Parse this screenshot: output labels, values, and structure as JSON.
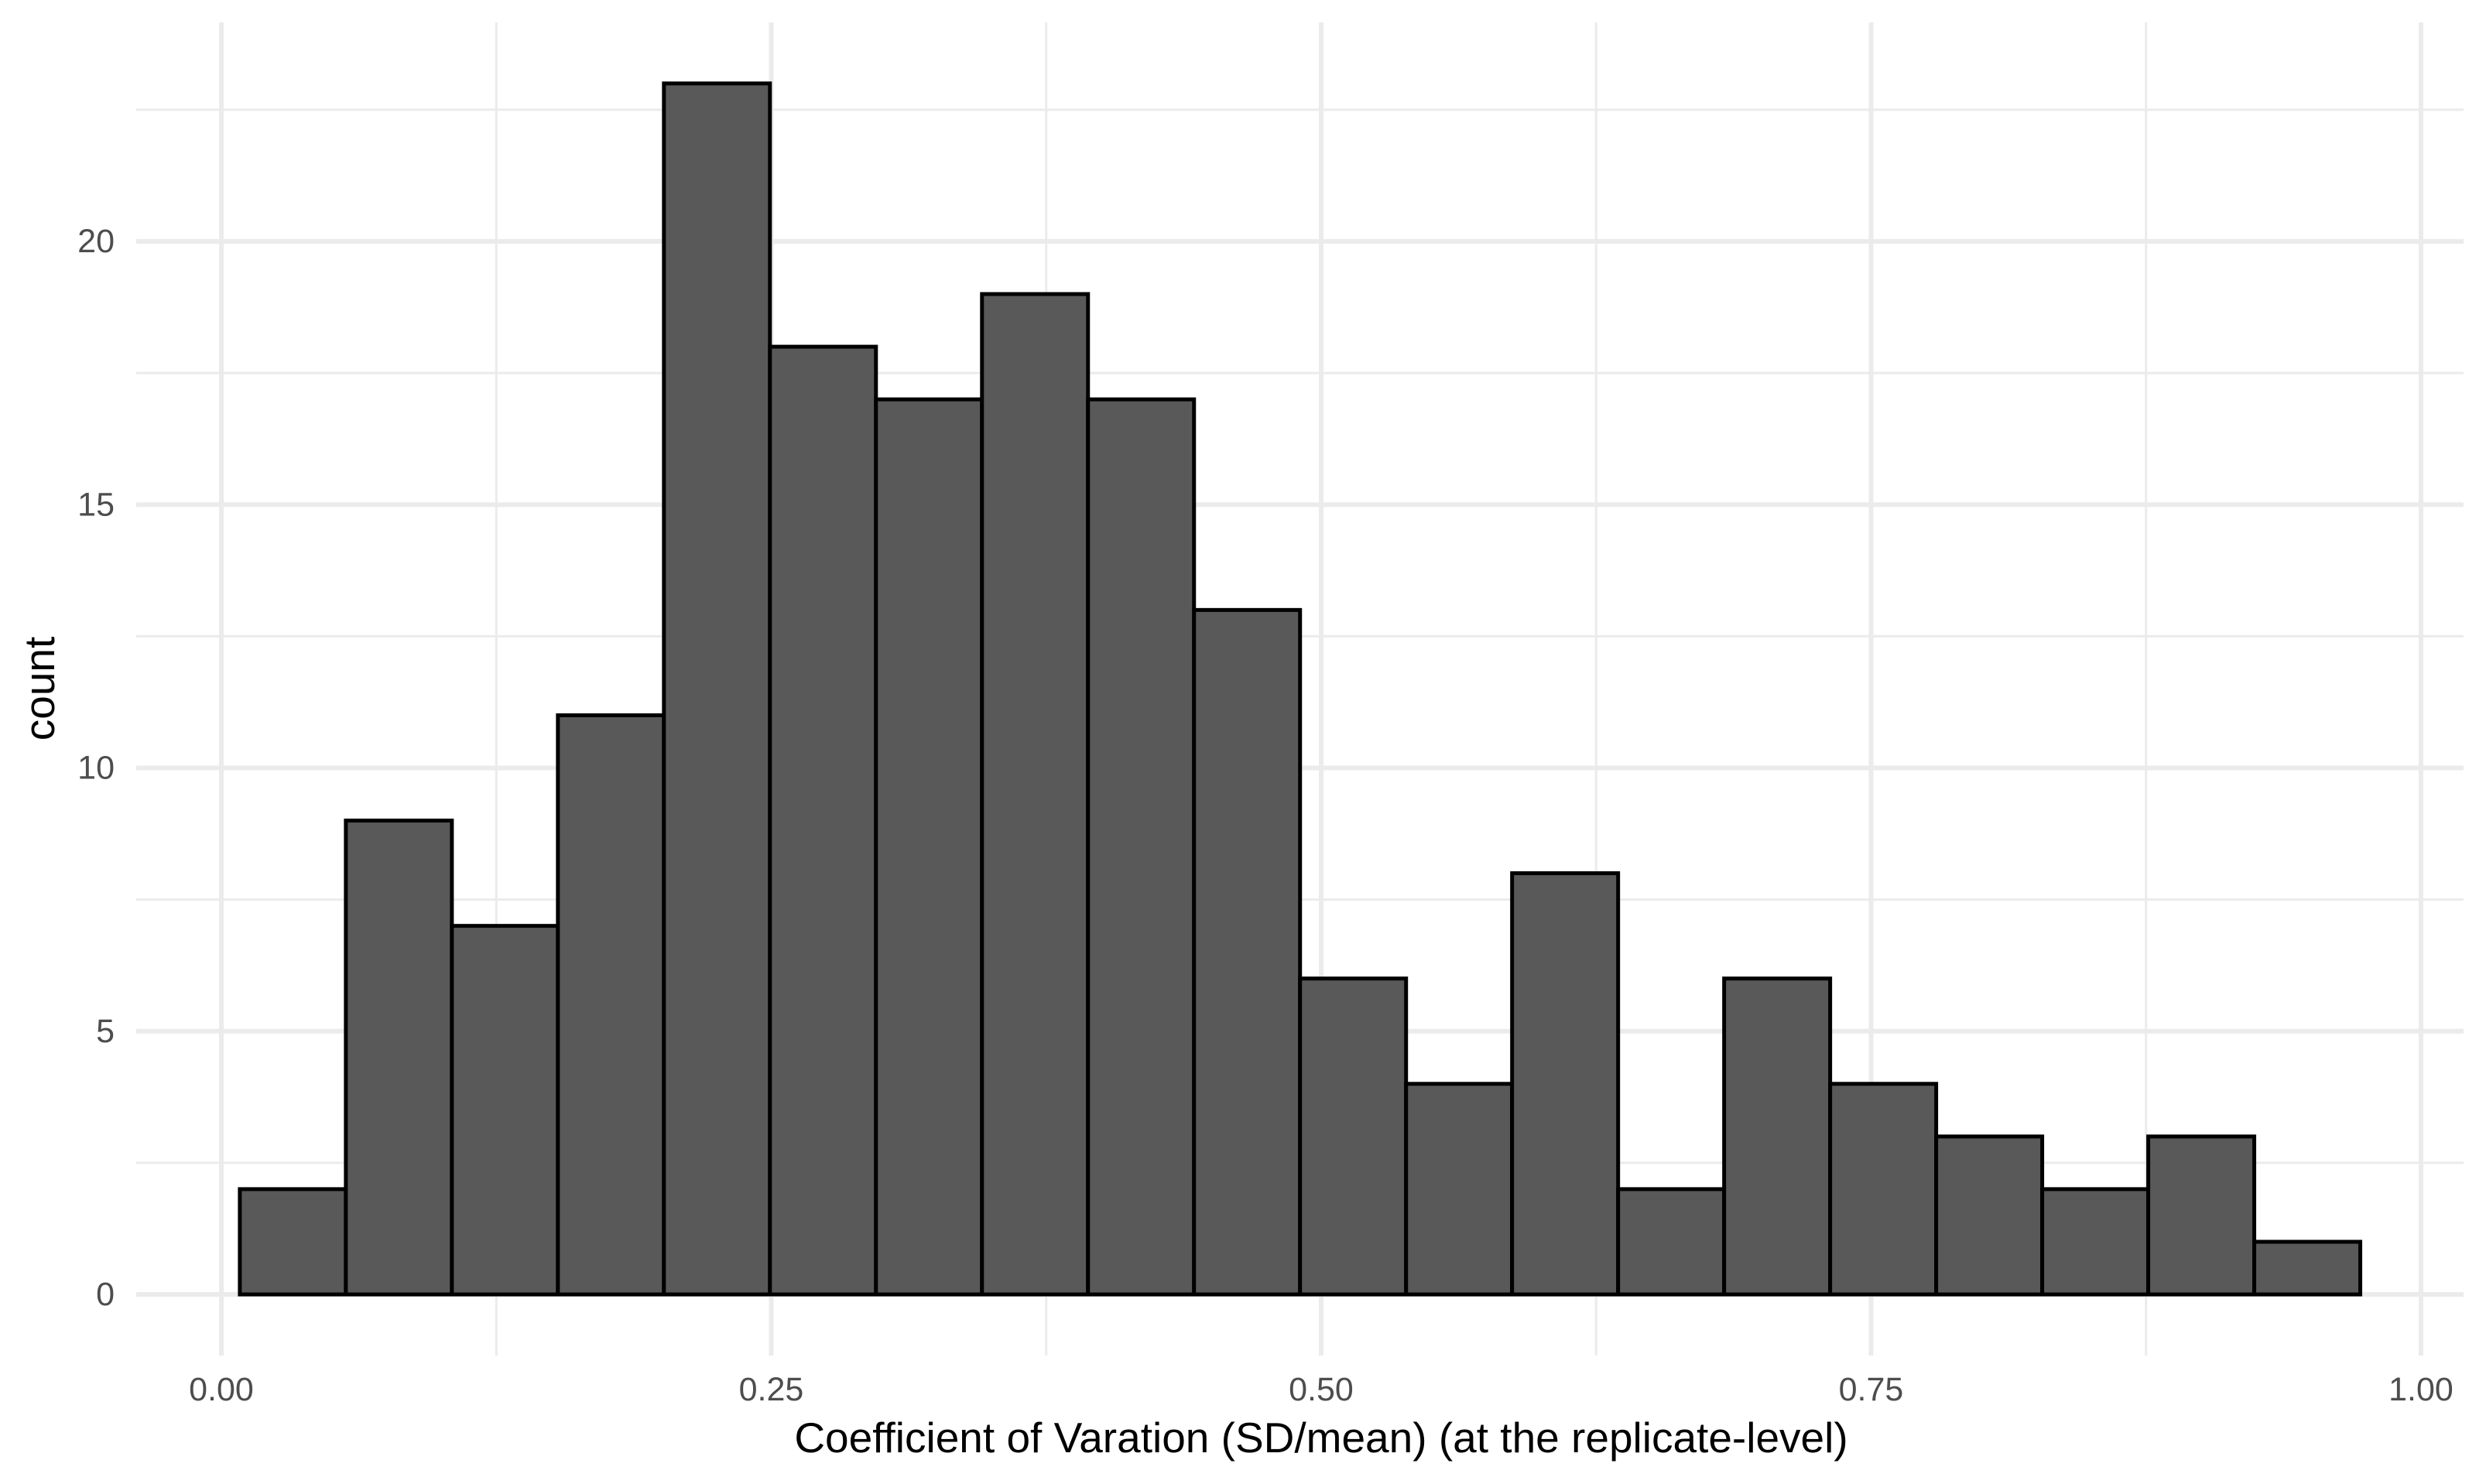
{
  "chart_data": {
    "type": "bar",
    "subtype": "histogram",
    "title": "",
    "xlabel": "Coefficient of Varation (SD/mean) (at the replicate-level)",
    "ylabel": "count",
    "xlim": [
      -0.035,
      1.035
    ],
    "ylim": [
      -1.15,
      24.2
    ],
    "x_ticks": [
      0.0,
      0.25,
      0.5,
      0.75,
      1.0
    ],
    "x_tick_labels": [
      "0.00",
      "0.25",
      "0.50",
      "0.75",
      "1.00"
    ],
    "y_ticks": [
      0,
      5,
      10,
      15,
      20
    ],
    "y_tick_labels": [
      "0",
      "5",
      "10",
      "15",
      "20"
    ],
    "grid": true,
    "legend": null,
    "bins": 20,
    "bin_start": 0.0084,
    "bin_width": 0.0482,
    "bin_edges": [
      0.008,
      0.057,
      0.105,
      0.153,
      0.201,
      0.249,
      0.297,
      0.346,
      0.394,
      0.442,
      0.49,
      0.538,
      0.587,
      0.635,
      0.683,
      0.731,
      0.779,
      0.828,
      0.876,
      0.924,
      0.972
    ],
    "values": [
      2,
      9,
      7,
      11,
      23,
      18,
      17,
      19,
      17,
      13,
      6,
      4,
      8,
      2,
      6,
      4,
      3,
      2,
      3,
      1
    ],
    "colors": {
      "fill": "#595959",
      "outline": "#000000",
      "grid": "#EBEBEB",
      "tick_text": "#4D4D4D",
      "axis_title": "#000000"
    }
  }
}
